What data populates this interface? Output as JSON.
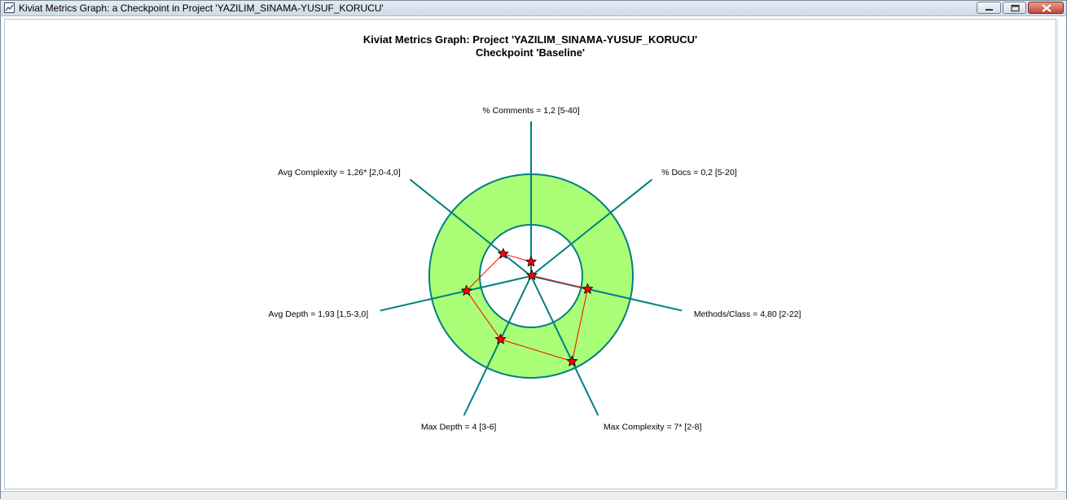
{
  "window": {
    "title": "Kiviat Metrics Graph: a Checkpoint in Project 'YAZILIM_SINAMA-YUSUF_KORUCU'",
    "icon": "chart-icon",
    "controls": [
      "minimize-icon",
      "maximize-icon",
      "close-icon"
    ]
  },
  "chart_data": {
    "type": "kiviat",
    "title": "Kiviat Metrics Graph: Project 'YAZILIM_SINAMA-YUSUF_KORUCU'",
    "subtitle": "Checkpoint 'Baseline'",
    "band_color": "#aaff77",
    "axis_color": "#007f7f",
    "line_color": "#ff0000",
    "marker_color": "#ff0000",
    "axes": [
      {
        "label": "% Comments = 1,2 [5-40]",
        "metric": "% Comments",
        "value": 1.2,
        "min": 5,
        "max": 40,
        "angle_deg": 90,
        "label_align": "middle",
        "r_norm": 0.14
      },
      {
        "label": "% Docs = 0,2 [5-20]",
        "metric": "% Docs",
        "value": 0.2,
        "min": 5,
        "max": 20,
        "angle_deg": 38.6,
        "label_align": "start",
        "r_norm": 0.01
      },
      {
        "label": "Methods/Class = 4,80 [2-22]",
        "metric": "Methods/Class",
        "value": 4.8,
        "min": 2,
        "max": 22,
        "angle_deg": -12.9,
        "label_align": "start",
        "r_norm": 0.57
      },
      {
        "label": "Max Complexity = 7* [2-8]",
        "metric": "Max Complexity",
        "value": 7,
        "min": 2,
        "max": 8,
        "angle_deg": -64.3,
        "label_align": "start",
        "r_norm": 0.93
      },
      {
        "label": "Max Depth = 4 [3-6]",
        "metric": "Max Depth",
        "value": 4,
        "min": 3,
        "max": 6,
        "angle_deg": -115.7,
        "label_align": "middle",
        "r_norm": 0.69
      },
      {
        "label": "Avg Depth = 1,93 [1,5-3,0]",
        "metric": "Avg Depth",
        "value": 1.93,
        "min": 1.5,
        "max": 3.0,
        "angle_deg": -167.1,
        "label_align": "end",
        "r_norm": 0.65
      },
      {
        "label": "Avg Complexity = 1,26* [2,0-4,0]",
        "metric": "Avg Complexity",
        "value": 1.26,
        "min": 2.0,
        "max": 4.0,
        "angle_deg": 141.4,
        "label_align": "end",
        "r_norm": 0.35
      }
    ]
  }
}
